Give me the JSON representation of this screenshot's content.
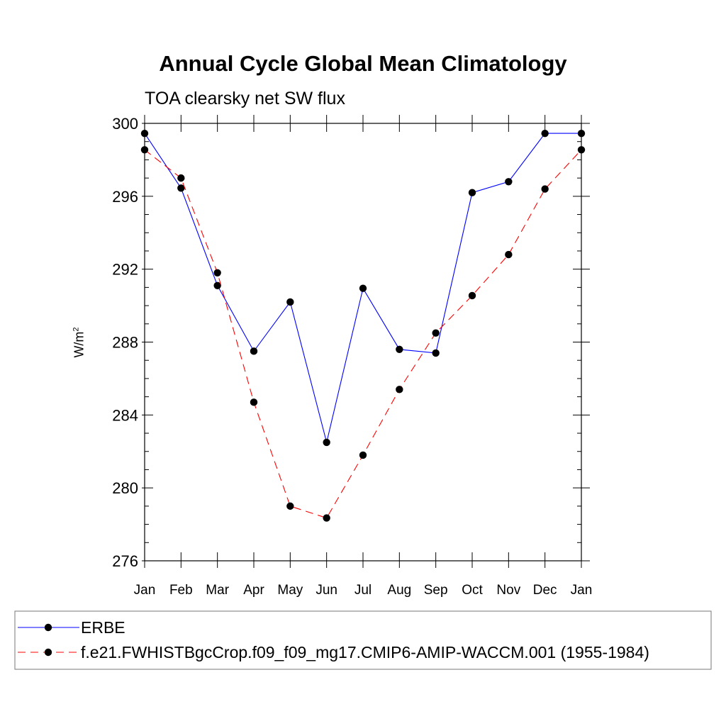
{
  "chart_data": {
    "type": "line",
    "title": "Annual Cycle Global Mean Climatology",
    "subtitle": "TOA clearsky net SW flux",
    "ylabel_base": "W/m",
    "ylabel_exp": "2",
    "xlabel": "",
    "categories": [
      "Jan",
      "Feb",
      "Mar",
      "Apr",
      "May",
      "Jun",
      "Jul",
      "Aug",
      "Sep",
      "Oct",
      "Nov",
      "Dec",
      "Jan"
    ],
    "ylim": [
      276,
      300
    ],
    "yticks": [
      276,
      280,
      284,
      288,
      292,
      296,
      300
    ],
    "ytick_labels": [
      "276",
      "280",
      "284",
      "288",
      "292",
      "296",
      "300"
    ],
    "series": [
      {
        "name": "ERBE",
        "color": "#0000ff",
        "dashed": false,
        "values": [
          299.45,
          296.45,
          291.1,
          287.5,
          290.2,
          282.5,
          290.95,
          287.6,
          287.4,
          296.2,
          296.8,
          299.45,
          299.45
        ]
      },
      {
        "name": "f.e21.FWHISTBgcCrop.f09_f09_mg17.CMIP6-AMIP-WACCM.001 (1955-1984)",
        "color": "#ff0000",
        "dashed": true,
        "values": [
          298.55,
          297.0,
          291.8,
          284.7,
          279.0,
          278.35,
          281.8,
          285.4,
          288.5,
          290.55,
          292.8,
          296.4,
          298.55
        ]
      }
    ],
    "legend_position": "bottom"
  }
}
